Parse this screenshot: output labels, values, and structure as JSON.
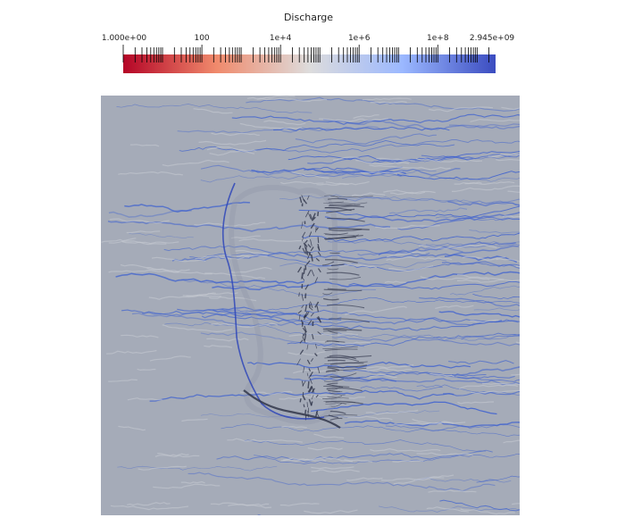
{
  "scalar_bar": {
    "title": "Discharge",
    "scale": "log",
    "range": [
      1,
      2945000000
    ],
    "tick_labels": [
      "1.000e+00",
      "100",
      "1e+4",
      "1e+6",
      "1e+8",
      "2.945e+09"
    ],
    "colormap": "cool-to-warm (reversed)",
    "colors": {
      "low": "#b40426",
      "mid": "#dddddd",
      "high": "#3b4cc0"
    }
  },
  "map": {
    "background_color": "#a4aab6",
    "channel_color": "#3a5ed0",
    "ridge_dark_color": "#2a2f44"
  }
}
